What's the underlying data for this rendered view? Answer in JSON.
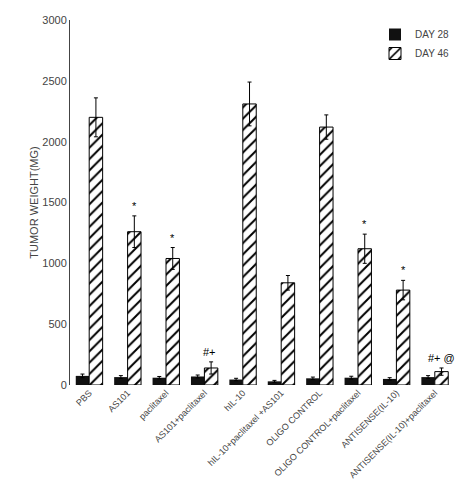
{
  "chart_data": {
    "type": "bar",
    "categories": [
      "PBS",
      "AS101",
      "paclitaxel",
      "AS101+paclitaxel",
      "hIL-10",
      "hIL-10+paclitaxel +AS101",
      "OLIGO CONTROL",
      "OLIGO CONTROL+paclitaxel",
      "ANTISENSE(IL-10)",
      "ANTISENSE(IL-10)+paclitaxel"
    ],
    "series": [
      {
        "name": "DAY 28",
        "color": "#111111",
        "values": [
          75,
          65,
          60,
          70,
          45,
          30,
          55,
          60,
          50,
          65
        ],
        "errors": [
          15,
          12,
          10,
          12,
          10,
          8,
          10,
          12,
          10,
          12
        ]
      },
      {
        "name": "DAY 46",
        "color": "white",
        "values": [
          2200,
          1260,
          1040,
          140,
          2310,
          840,
          2120,
          1120,
          780,
          110
        ],
        "errors": [
          160,
          130,
          90,
          50,
          180,
          60,
          100,
          120,
          80,
          30
        ]
      }
    ],
    "ylabel": "TUMOR WEIGHT(MG)",
    "ylim": [
      0,
      3000
    ],
    "yticks": [
      0,
      500,
      1000,
      1500,
      2000,
      2500,
      3000
    ],
    "grid": false,
    "legend": "upper right",
    "annotations": [
      {
        "category": "AS101",
        "series": "DAY 46",
        "text": "*"
      },
      {
        "category": "paclitaxel",
        "series": "DAY 46",
        "text": "*"
      },
      {
        "category": "OLIGO CONTROL+paclitaxel",
        "series": "DAY 46",
        "text": "*"
      },
      {
        "category": "ANTISENSE(IL-10)",
        "series": "DAY 46",
        "text": "*"
      },
      {
        "category": "AS101+paclitaxel",
        "series": "DAY 46",
        "text": "#+ "
      },
      {
        "category": "ANTISENSE(IL-10)+paclitaxel",
        "series": "DAY 46",
        "text": "#+ @"
      }
    ]
  }
}
